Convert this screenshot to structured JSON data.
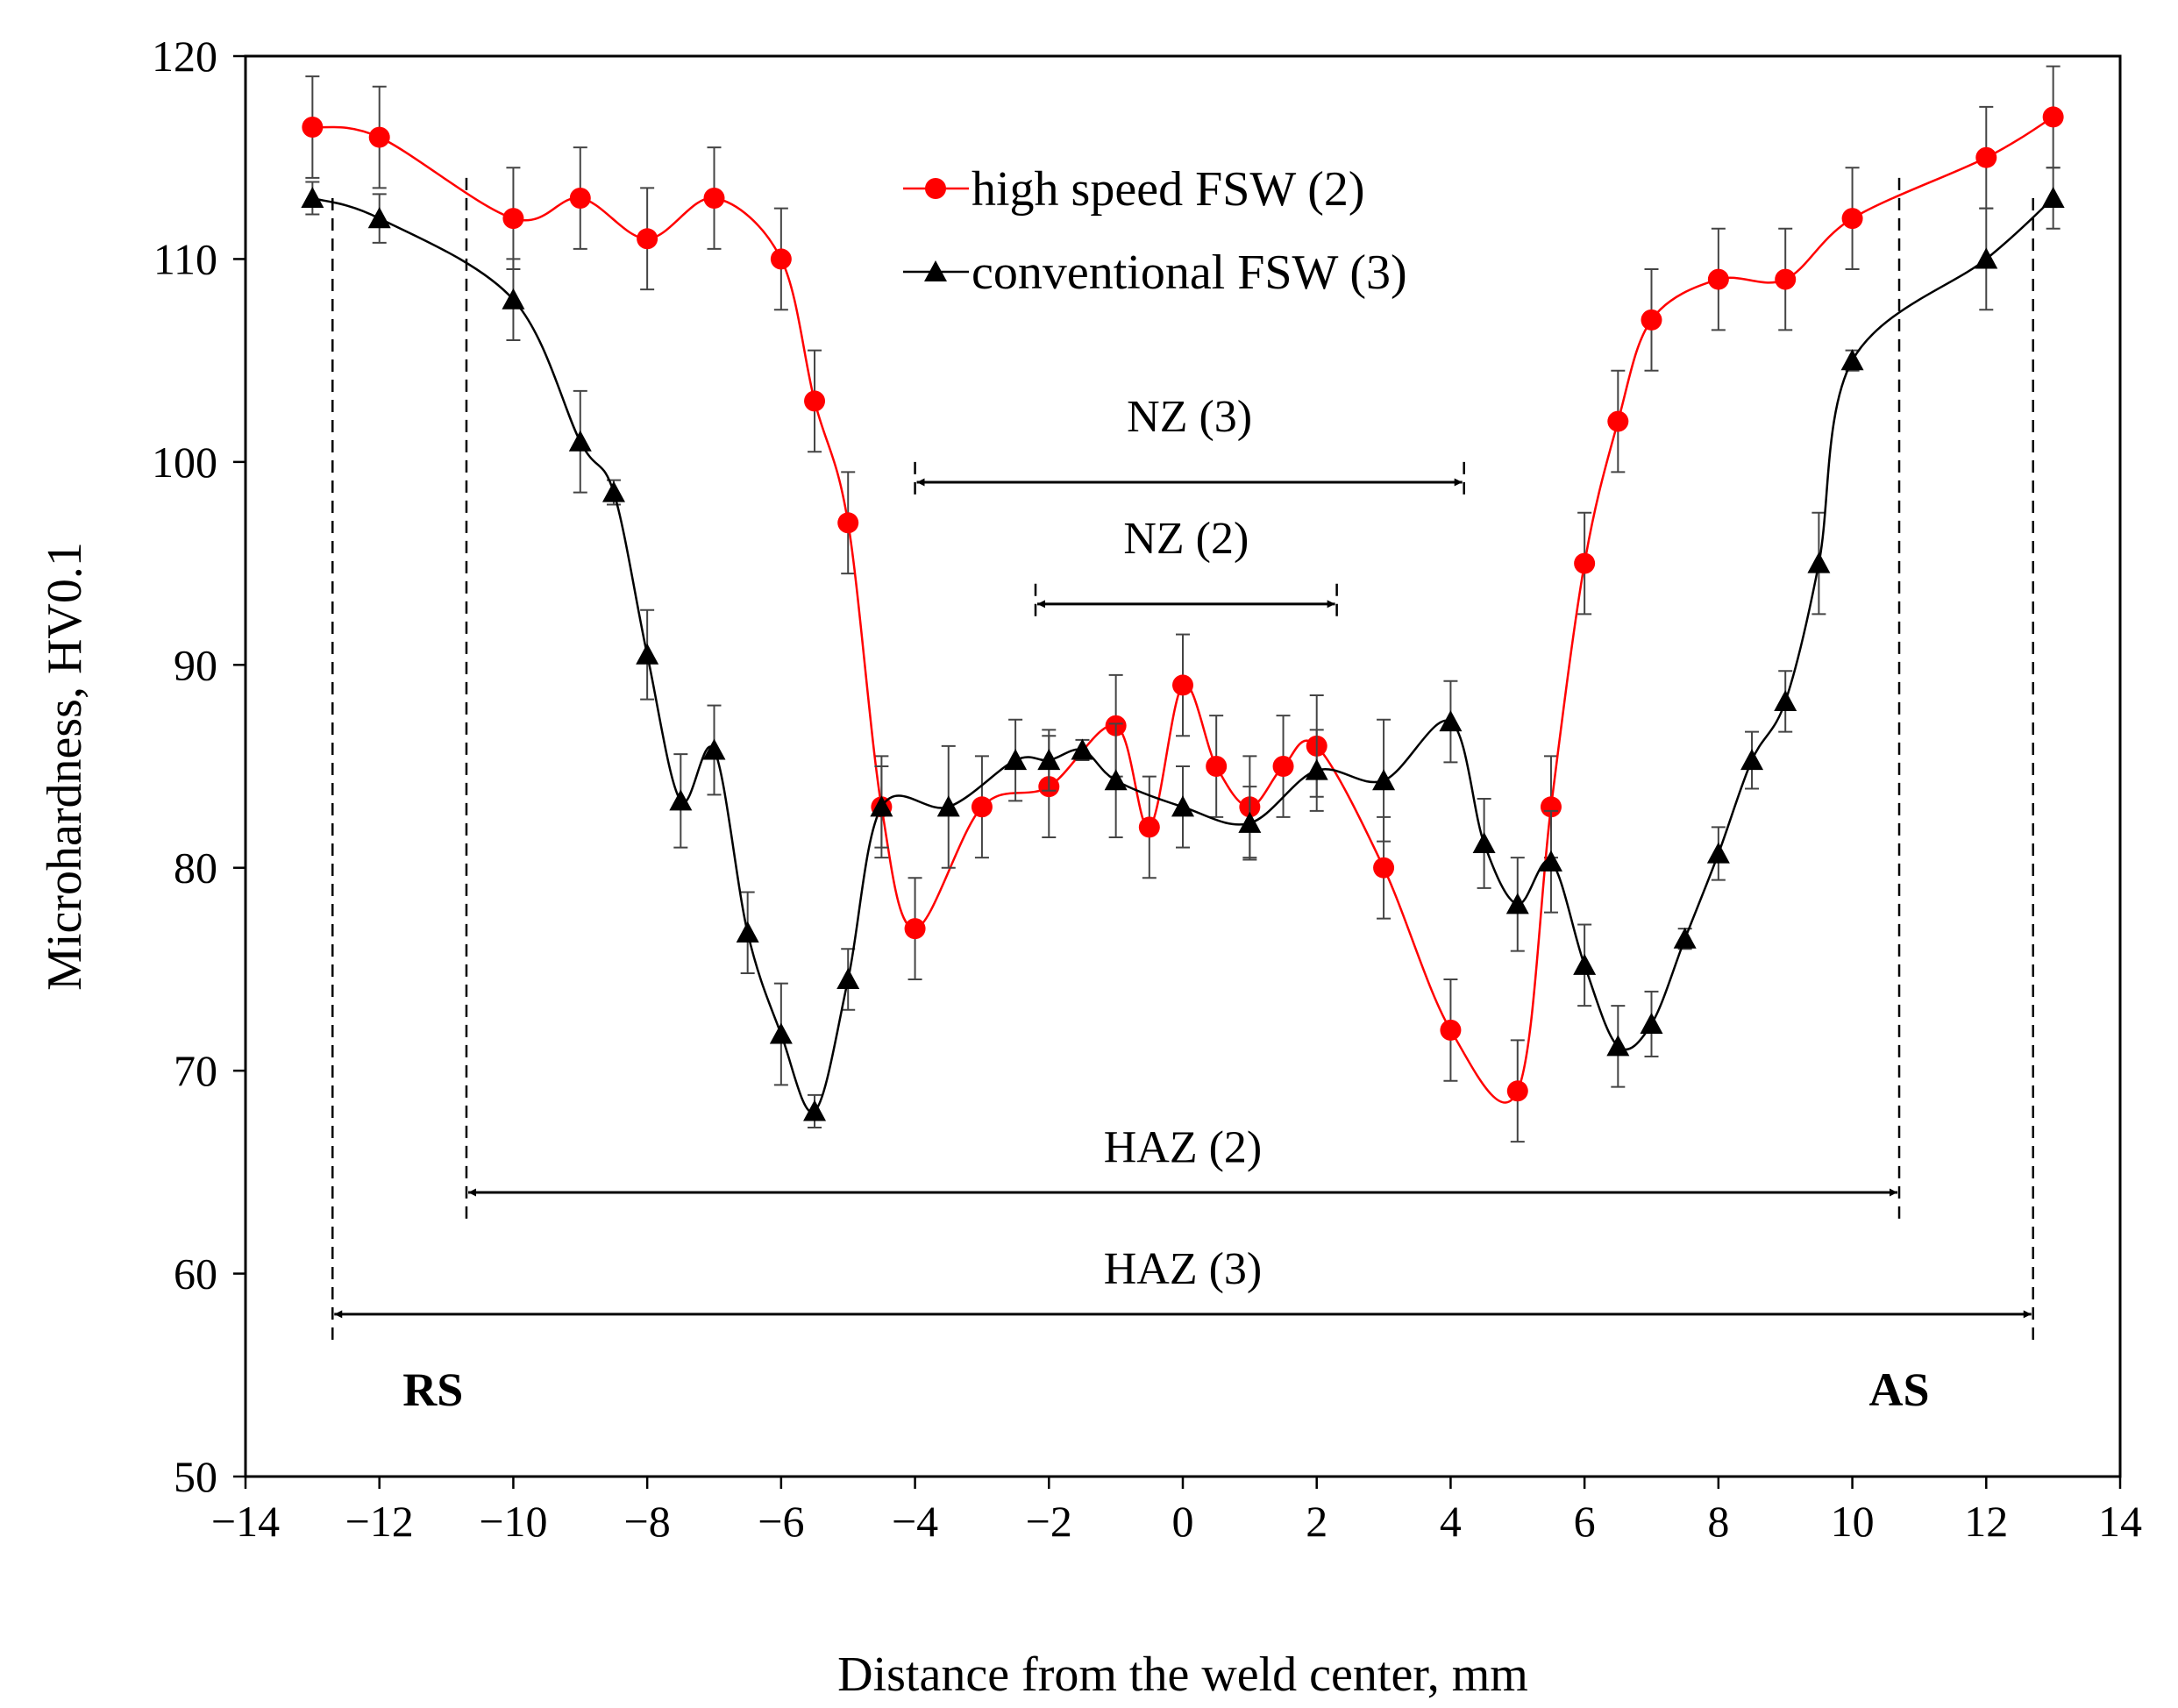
{
  "chart_data": {
    "type": "line",
    "title": "",
    "xlabel": "Distance from the weld center, mm",
    "ylabel": "Microhardness, HV0.1",
    "xlim": [
      -14,
      14
    ],
    "ylim": [
      50,
      120
    ],
    "xticks": [
      -14,
      -12,
      -10,
      -8,
      -6,
      -4,
      -2,
      0,
      2,
      4,
      6,
      8,
      10,
      12,
      14
    ],
    "xtick_labels": [
      "−14",
      "−12",
      "−10",
      "−8",
      "−6",
      "−4",
      "−2",
      "0",
      "2",
      "4",
      "6",
      "8",
      "10",
      "12",
      "14"
    ],
    "yticks": [
      50,
      60,
      70,
      80,
      90,
      100,
      110,
      120
    ],
    "ytick_labels": [
      "50",
      "60",
      "70",
      "80",
      "90",
      "100",
      "110",
      "120"
    ],
    "grid": false,
    "legend_position": "top-center",
    "series": [
      {
        "name": "high speed FSW (2)",
        "color": "#ff0000",
        "marker": "circle",
        "points": [
          {
            "x": -13,
            "y": 116.5,
            "err": 2.5
          },
          {
            "x": -12,
            "y": 116,
            "err": 2.5
          },
          {
            "x": -10,
            "y": 112,
            "err": 2.5
          },
          {
            "x": -9,
            "y": 113,
            "err": 2.5
          },
          {
            "x": -8,
            "y": 111,
            "err": 2.5
          },
          {
            "x": -7,
            "y": 113,
            "err": 2.5
          },
          {
            "x": -6,
            "y": 110,
            "err": 2.5
          },
          {
            "x": -5.5,
            "y": 103,
            "err": 2.5
          },
          {
            "x": -5,
            "y": 97,
            "err": 2.5
          },
          {
            "x": -4.5,
            "y": 83,
            "err": 2.5
          },
          {
            "x": -4,
            "y": 77,
            "err": 2.5
          },
          {
            "x": -3,
            "y": 83,
            "err": 2.5
          },
          {
            "x": -2,
            "y": 84,
            "err": 2.5
          },
          {
            "x": -1,
            "y": 87,
            "err": 2.5
          },
          {
            "x": -0.5,
            "y": 82,
            "err": 2.5
          },
          {
            "x": 0,
            "y": 89,
            "err": 2.5
          },
          {
            "x": 0.5,
            "y": 85,
            "err": 2.5
          },
          {
            "x": 1,
            "y": 83,
            "err": 2.5
          },
          {
            "x": 1.5,
            "y": 85,
            "err": 2.5
          },
          {
            "x": 2,
            "y": 86,
            "err": 2.5
          },
          {
            "x": 3,
            "y": 80,
            "err": 2.5
          },
          {
            "x": 4,
            "y": 72,
            "err": 2.5
          },
          {
            "x": 5,
            "y": 69,
            "err": 2.5
          },
          {
            "x": 5.5,
            "y": 83,
            "err": 2.5
          },
          {
            "x": 6,
            "y": 95,
            "err": 2.5
          },
          {
            "x": 6.5,
            "y": 102,
            "err": 2.5
          },
          {
            "x": 7,
            "y": 107,
            "err": 2.5
          },
          {
            "x": 8,
            "y": 109,
            "err": 2.5
          },
          {
            "x": 9,
            "y": 109,
            "err": 2.5
          },
          {
            "x": 10,
            "y": 112,
            "err": 2.5
          },
          {
            "x": 12,
            "y": 115,
            "err": 2.5
          },
          {
            "x": 13,
            "y": 117,
            "err": 2.5
          }
        ]
      },
      {
        "name": "conventional FSW (3)",
        "color": "#000000",
        "marker": "triangle",
        "points": [
          {
            "x": -13,
            "y": 113,
            "err": 0.8
          },
          {
            "x": -12,
            "y": 112,
            "err": 1.2
          },
          {
            "x": -10,
            "y": 108,
            "err": 2
          },
          {
            "x": -9,
            "y": 101,
            "err": 2.5
          },
          {
            "x": -8.5,
            "y": 98.5,
            "err": 0.6
          },
          {
            "x": -8,
            "y": 90.5,
            "err": 2.2
          },
          {
            "x": -7.5,
            "y": 83.3,
            "err": 2.3
          },
          {
            "x": -7,
            "y": 85.8,
            "err": 2.2
          },
          {
            "x": -6.5,
            "y": 76.8,
            "err": 2
          },
          {
            "x": -6,
            "y": 71.8,
            "err": 2.5
          },
          {
            "x": -5.5,
            "y": 68,
            "err": 0.8
          },
          {
            "x": -5,
            "y": 74.5,
            "err": 1.5
          },
          {
            "x": -4.5,
            "y": 83,
            "err": 2
          },
          {
            "x": -3.5,
            "y": 83,
            "err": 3
          },
          {
            "x": -2.5,
            "y": 85.3,
            "err": 2
          },
          {
            "x": -2,
            "y": 85.3,
            "err": 1.5
          },
          {
            "x": -1.5,
            "y": 85.8,
            "err": 0.5
          },
          {
            "x": -1,
            "y": 84.3,
            "err": 2.8
          },
          {
            "x": 0,
            "y": 83,
            "err": 2
          },
          {
            "x": 1,
            "y": 82.2,
            "err": 1.8
          },
          {
            "x": 2,
            "y": 84.8,
            "err": 2
          },
          {
            "x": 3,
            "y": 84.3,
            "err": 3
          },
          {
            "x": 4,
            "y": 87.2,
            "err": 2
          },
          {
            "x": 4.5,
            "y": 81.2,
            "err": 2.2
          },
          {
            "x": 5,
            "y": 78.2,
            "err": 2.3
          },
          {
            "x": 5.5,
            "y": 80.3,
            "err": 2.5
          },
          {
            "x": 6,
            "y": 75.2,
            "err": 2
          },
          {
            "x": 6.5,
            "y": 71.2,
            "err": 2
          },
          {
            "x": 7,
            "y": 72.3,
            "err": 1.6
          },
          {
            "x": 7.5,
            "y": 76.5,
            "err": 0.5
          },
          {
            "x": 8,
            "y": 80.7,
            "err": 1.3
          },
          {
            "x": 8.5,
            "y": 85.3,
            "err": 1.4
          },
          {
            "x": 9,
            "y": 88.2,
            "err": 1.5
          },
          {
            "x": 9.5,
            "y": 95,
            "err": 2.5
          },
          {
            "x": 10,
            "y": 105,
            "err": 0.5
          },
          {
            "x": 12,
            "y": 110,
            "err": 2.5
          },
          {
            "x": 13,
            "y": 113,
            "err": 1.5
          }
        ]
      }
    ],
    "zones": [
      {
        "label": "NZ (3)",
        "x_start": -4,
        "x_end": 4.2,
        "y_arrow": 99,
        "y_line_top": 100,
        "y_label": 101.5
      },
      {
        "label": "NZ (2)",
        "x_start": -2.2,
        "x_end": 2.3,
        "y_arrow": 93,
        "y_line_top": 94,
        "y_label": 95.5
      },
      {
        "label": "HAZ (2)",
        "x_start": -10.7,
        "x_end": 10.7,
        "y_arrow": 64,
        "y_line_top": 114,
        "y_line_bottom": 62.5,
        "y_label": 65.5
      },
      {
        "label": "HAZ (3)",
        "x_start": -12.7,
        "x_end": 12.7,
        "y_arrow": 58,
        "y_line_top": 113,
        "y_line_bottom": 56.5,
        "y_label": 59.5
      }
    ],
    "side_labels": [
      {
        "text": "RS",
        "x": -11.2,
        "y": 53.5
      },
      {
        "text": "AS",
        "x": 10.7,
        "y": 53.5
      }
    ]
  }
}
